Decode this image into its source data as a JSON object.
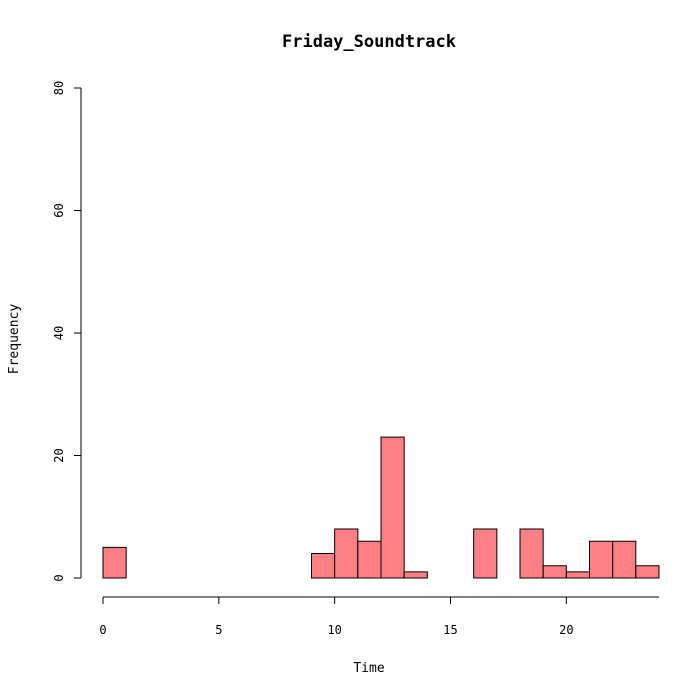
{
  "chart_data": {
    "type": "bar",
    "title": "Friday_Soundtrack",
    "xlabel": "Time",
    "ylabel": "Frequency",
    "bar_color": "#FF7F84",
    "xlim": [
      0,
      24
    ],
    "ylim": [
      0,
      80
    ],
    "xticks": [
      0,
      5,
      10,
      15,
      20
    ],
    "yticks": [
      0,
      20,
      40,
      60,
      80
    ],
    "bins": [
      {
        "start": 0,
        "end": 1,
        "count": 5
      },
      {
        "start": 1,
        "end": 2,
        "count": 0
      },
      {
        "start": 2,
        "end": 3,
        "count": 0
      },
      {
        "start": 3,
        "end": 4,
        "count": 0
      },
      {
        "start": 4,
        "end": 5,
        "count": 0
      },
      {
        "start": 5,
        "end": 6,
        "count": 0
      },
      {
        "start": 6,
        "end": 7,
        "count": 0
      },
      {
        "start": 7,
        "end": 8,
        "count": 0
      },
      {
        "start": 8,
        "end": 9,
        "count": 0
      },
      {
        "start": 9,
        "end": 10,
        "count": 4
      },
      {
        "start": 10,
        "end": 11,
        "count": 8
      },
      {
        "start": 11,
        "end": 12,
        "count": 6
      },
      {
        "start": 12,
        "end": 13,
        "count": 23
      },
      {
        "start": 13,
        "end": 14,
        "count": 1
      },
      {
        "start": 14,
        "end": 15,
        "count": 0
      },
      {
        "start": 15,
        "end": 16,
        "count": 0
      },
      {
        "start": 16,
        "end": 17,
        "count": 8
      },
      {
        "start": 17,
        "end": 18,
        "count": 0
      },
      {
        "start": 18,
        "end": 19,
        "count": 8
      },
      {
        "start": 19,
        "end": 20,
        "count": 2
      },
      {
        "start": 20,
        "end": 21,
        "count": 1
      },
      {
        "start": 21,
        "end": 22,
        "count": 6
      },
      {
        "start": 22,
        "end": 23,
        "count": 6
      },
      {
        "start": 23,
        "end": 24,
        "count": 2
      }
    ]
  }
}
